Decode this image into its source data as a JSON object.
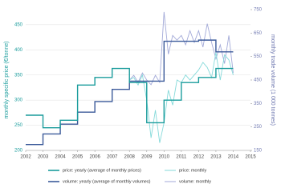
{
  "chart_data": {
    "type": "line",
    "xlim": [
      2002,
      2015
    ],
    "xticks": [
      2002,
      2003,
      2004,
      2005,
      2006,
      2007,
      2008,
      2009,
      2010,
      2011,
      2012,
      2013,
      2014,
      2015
    ],
    "ylim": [
      200,
      480
    ],
    "yticks": [
      200,
      250,
      300,
      350,
      400,
      450
    ],
    "y2lim": [
      150,
      750
    ],
    "y2ticks": [
      150,
      250,
      350,
      450,
      550,
      650,
      750
    ],
    "ylabel": "monthly specific price (€/tonne)",
    "y2label": "monthly trade volume (1 000 tonnes)",
    "grid": true,
    "series": [
      {
        "name": "price: yearly (average of monthly prices)",
        "color": "#1a9c9c",
        "step": true,
        "x": [
          2002,
          2003,
          2004,
          2005,
          2006,
          2007,
          2008,
          2009,
          2010,
          2011,
          2012,
          2013,
          2014
        ],
        "values": [
          270,
          245,
          260,
          330,
          345,
          363,
          335,
          255,
          300,
          335,
          345,
          363,
          363
        ]
      },
      {
        "name": "price: monthly",
        "color": "#86dada",
        "x": [
          2008,
          2008.25,
          2008.5,
          2008.75,
          2009,
          2009.25,
          2009.5,
          2009.75,
          2010,
          2010.25,
          2010.5,
          2010.75,
          2011,
          2011.25,
          2011.5,
          2011.75,
          2012,
          2012.25,
          2012.5,
          2012.75,
          2013,
          2013.25,
          2013.5,
          2013.75,
          2014
        ],
        "values": [
          340,
          345,
          330,
          350,
          300,
          225,
          280,
          215,
          255,
          320,
          290,
          340,
          335,
          350,
          340,
          350,
          360,
          375,
          365,
          345,
          395,
          340,
          390,
          380,
          350
        ]
      },
      {
        "name": "volume: yearly (average of monthly volumes)",
        "color": "#3b5a9a",
        "step": true,
        "axis": "y2",
        "x": [
          2002,
          2003,
          2004,
          2005,
          2006,
          2007,
          2008,
          2009,
          2010,
          2011,
          2012,
          2013,
          2014
        ],
        "values": [
          175,
          220,
          262,
          313,
          358,
          410,
          445,
          445,
          615,
          615,
          620,
          570,
          570
        ]
      },
      {
        "name": "volume: monthly",
        "color": "#a3aad8",
        "axis": "y2",
        "x": [
          2008,
          2008.25,
          2008.5,
          2008.75,
          2009,
          2009.25,
          2009.5,
          2009.75,
          2010,
          2010.25,
          2010.5,
          2010.75,
          2011,
          2011.25,
          2011.5,
          2011.75,
          2012,
          2012.25,
          2012.5,
          2012.75,
          2013,
          2013.25,
          2013.5,
          2013.75,
          2014
        ],
        "values": [
          450,
          470,
          440,
          480,
          450,
          430,
          470,
          440,
          740,
          560,
          640,
          620,
          640,
          600,
          660,
          610,
          660,
          590,
          690,
          610,
          540,
          600,
          520,
          640,
          480
        ]
      }
    ]
  }
}
